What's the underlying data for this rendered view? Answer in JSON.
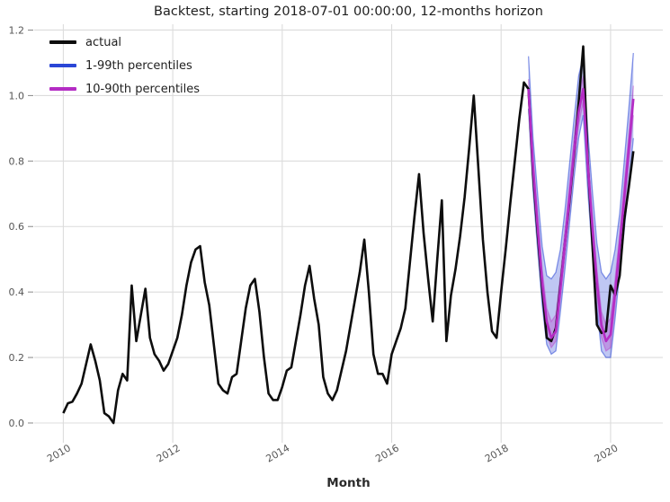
{
  "figure": {
    "title": "Backtest, starting 2018-07-01 00:00:00, 12-months horizon",
    "xlabel": "Month"
  },
  "legend": {
    "items": [
      {
        "label": "actual"
      },
      {
        "label": "1-99th percentiles"
      },
      {
        "label": "10-90th percentiles"
      }
    ]
  },
  "chart_data": {
    "type": "line",
    "title": "Backtest, starting 2018-07-01 00:00:00, 12-months horizon",
    "xlabel": "Month",
    "x_unit": "month",
    "x_start": "2010-01",
    "grid": true,
    "grid_color": "#dcdcdc",
    "tick_color": "#555555",
    "ylim": [
      -0.06,
      1.22
    ],
    "y_tick_labels": [
      "0.0",
      "0.2",
      "0.4",
      "0.6",
      "0.8",
      "1.0",
      "1.2"
    ],
    "y_tick_values": [
      0.0,
      0.2,
      0.4,
      0.6,
      0.8,
      1.0,
      1.2
    ],
    "x_tick_labels": [
      "2010",
      "2012",
      "2014",
      "2016",
      "2018",
      "2020"
    ],
    "x_tick_month_index": [
      0,
      24,
      48,
      72,
      96,
      120
    ],
    "legend_position": "upper-left",
    "series": [
      {
        "name": "actual",
        "color": "#0d0d0d",
        "start_month_index": 0,
        "values": [
          0.03,
          0.06,
          0.065,
          0.09,
          0.12,
          0.18,
          0.24,
          0.19,
          0.13,
          0.03,
          0.02,
          0.0,
          0.1,
          0.15,
          0.13,
          0.42,
          0.25,
          0.33,
          0.41,
          0.26,
          0.21,
          0.19,
          0.16,
          0.18,
          0.22,
          0.26,
          0.33,
          0.42,
          0.49,
          0.53,
          0.54,
          0.43,
          0.36,
          0.24,
          0.12,
          0.1,
          0.09,
          0.14,
          0.15,
          0.25,
          0.35,
          0.42,
          0.44,
          0.34,
          0.2,
          0.09,
          0.07,
          0.07,
          0.11,
          0.16,
          0.17,
          0.25,
          0.33,
          0.42,
          0.48,
          0.38,
          0.3,
          0.14,
          0.09,
          0.07,
          0.1,
          0.16,
          0.22,
          0.3,
          0.38,
          0.46,
          0.56,
          0.4,
          0.21,
          0.15,
          0.15,
          0.12,
          0.21,
          0.25,
          0.29,
          0.35,
          0.49,
          0.63,
          0.76,
          0.58,
          0.44,
          0.31,
          0.5,
          0.68,
          0.25,
          0.39,
          0.47,
          0.57,
          0.69,
          0.84,
          1.0,
          0.78,
          0.56,
          0.4,
          0.28,
          0.26,
          0.4,
          0.53,
          0.67,
          0.8,
          0.93,
          1.04,
          1.02,
          0.76,
          0.58,
          0.41,
          0.26,
          0.25,
          0.29,
          0.42,
          0.55,
          0.68,
          0.82,
          0.98,
          1.15,
          0.8,
          0.55,
          0.3,
          0.275,
          0.28,
          0.42,
          0.39,
          0.45,
          0.62,
          0.72,
          0.83
        ]
      },
      {
        "name": "forecast-median",
        "color": "#b42cc4",
        "start_month_index": 102,
        "values": [
          1.02,
          0.78,
          0.6,
          0.43,
          0.31,
          0.26,
          0.28,
          0.41,
          0.55,
          0.69,
          0.83,
          0.95,
          1.02,
          0.79,
          0.6,
          0.43,
          0.3,
          0.25,
          0.27,
          0.4,
          0.54,
          0.69,
          0.84,
          0.99
        ]
      }
    ],
    "bands": [
      {
        "name": "1-99th percentiles",
        "color": "#2a46d6",
        "opacity": 0.3,
        "edge_opacity": 0.55,
        "start_month_index": 102,
        "lower": [
          0.96,
          0.71,
          0.53,
          0.36,
          0.24,
          0.21,
          0.22,
          0.34,
          0.47,
          0.61,
          0.75,
          0.87,
          0.94,
          0.71,
          0.52,
          0.35,
          0.22,
          0.2,
          0.2,
          0.32,
          0.46,
          0.59,
          0.73,
          0.87
        ],
        "upper": [
          1.12,
          0.87,
          0.7,
          0.54,
          0.45,
          0.44,
          0.46,
          0.53,
          0.65,
          0.79,
          0.93,
          1.06,
          1.12,
          0.89,
          0.71,
          0.55,
          0.46,
          0.44,
          0.46,
          0.53,
          0.64,
          0.8,
          0.96,
          1.13
        ]
      },
      {
        "name": "10-90th percentiles",
        "color": "#b42cc4",
        "opacity": 0.3,
        "edge_opacity": 0.4,
        "start_month_index": 102,
        "lower": [
          0.99,
          0.75,
          0.57,
          0.4,
          0.27,
          0.23,
          0.25,
          0.38,
          0.51,
          0.65,
          0.79,
          0.91,
          0.98,
          0.75,
          0.56,
          0.39,
          0.26,
          0.22,
          0.23,
          0.36,
          0.5,
          0.64,
          0.79,
          0.94
        ],
        "upper": [
          1.05,
          0.82,
          0.64,
          0.47,
          0.35,
          0.31,
          0.33,
          0.45,
          0.59,
          0.73,
          0.87,
          0.99,
          1.06,
          0.83,
          0.64,
          0.47,
          0.34,
          0.3,
          0.32,
          0.44,
          0.58,
          0.73,
          0.88,
          1.03
        ]
      }
    ]
  }
}
